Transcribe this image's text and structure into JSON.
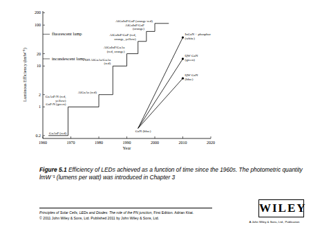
{
  "chart_data": {
    "type": "line",
    "x_label": "Year",
    "y_label": "Luminous Efficiency (lmW⁻¹)",
    "xlim": [
      1960,
      2020
    ],
    "xticks": [
      1960,
      1970,
      1980,
      1990,
      2000,
      2010,
      2020
    ],
    "ylim": [
      0.17,
      220
    ],
    "yticks": [
      0.2,
      1,
      2,
      10,
      20,
      100,
      200
    ],
    "log": "y",
    "series": [
      {
        "type": "step",
        "color": "#000000",
        "x": [
          1962,
          1969,
          1980,
          1985,
          1990,
          1994,
          1997,
          2000,
          2005
        ],
        "values": [
          0.2,
          1,
          2,
          10,
          20,
          40,
          70,
          110,
          110
        ],
        "point_labels": [
          [
            "GaAsP (red)"
          ],
          [
            "GaAsP:N (red,",
            "yellow)",
            "GaP:N (green)"
          ],
          [
            "AlGaAs (red)"
          ],
          [
            "DH AlGaAs/GaAs",
            "(red)"
          ],
          [
            "AlGaInP/GaAs",
            "(red, orange)"
          ],
          [
            "AlGaInP/GaP (red,",
            "orange, yellow)"
          ],
          [
            "AlGaInP/GaP",
            "(orange)"
          ],
          [
            "AlGaInP/GaP (orange-red)"
          ],
          null
        ]
      },
      {
        "type": "line",
        "color": "#000000",
        "marker": "dot",
        "x": [
          1994,
          2010
        ],
        "values": [
          0.3,
          50
        ],
        "point_labels": [
          [
            "GaN (blue)"
          ],
          [
            "InGaN + phosphor",
            "(white)"
          ]
        ]
      },
      {
        "type": "line",
        "color": "#000000",
        "marker": "dot",
        "x": [
          1994,
          2010
        ],
        "values": [
          0.3,
          15
        ],
        "point_labels": [
          null,
          [
            "QW GaN",
            "(green)"
          ]
        ]
      },
      {
        "type": "line",
        "color": "#000000",
        "marker": "dot",
        "x": [
          1994,
          2010
        ],
        "values": [
          0.3,
          5
        ],
        "point_labels": [
          null,
          [
            "QW GaN",
            "(blue)"
          ]
        ]
      }
    ],
    "reference_lines": [
      {
        "label": "fluorescent lamp",
        "value": 60
      },
      {
        "label": "incandescent lamp",
        "value": 15
      }
    ]
  },
  "caption": {
    "label": "Figure 5.1",
    "text": "Efficiency of LEDs achieved as a function of time since the 1960s. The photometric quantity lmW⁻¹ (lumens per watt) was introduced in Chapter 3"
  },
  "footer": {
    "book_title": "Principles of Solar Cells, LEDs and Diodes: The role of the PN junction",
    "book_info": ", First Edition. Adrian Kitai.",
    "copyright": "© 2011 John Wiley & Sons, Ltd. Published 2011 by John Wiley & Sons, Ltd."
  },
  "logo": {
    "text": "WILEY",
    "tagline": "A John Wiley & Sons, Ltd., Publication"
  }
}
